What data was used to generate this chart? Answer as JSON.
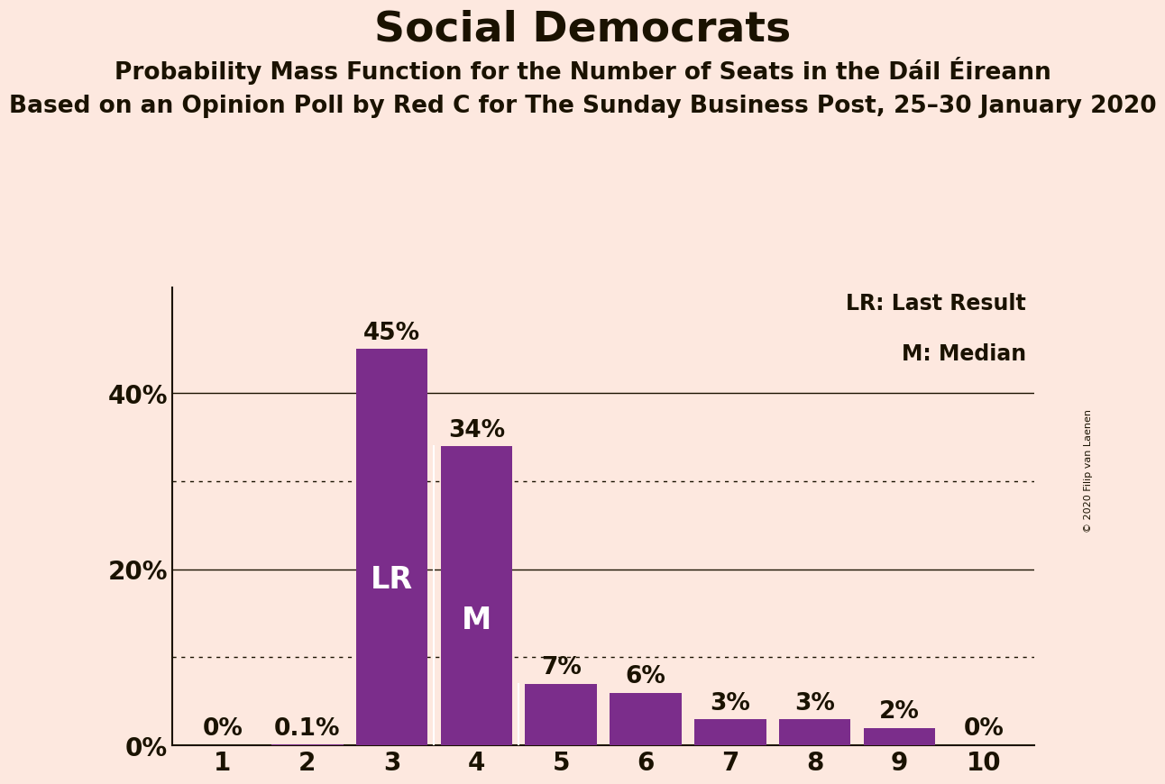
{
  "title": "Social Democrats",
  "subtitle1": "Probability Mass Function for the Number of Seats in the Dáil Éireann",
  "subtitle2": "Based on an Opinion Poll by Red C for The Sunday Business Post, 25–30 January 2020",
  "copyright": "© 2020 Filip van Laenen",
  "categories": [
    1,
    2,
    3,
    4,
    5,
    6,
    7,
    8,
    9,
    10
  ],
  "values": [
    0.0,
    0.1,
    45.0,
    34.0,
    7.0,
    6.0,
    3.0,
    3.0,
    2.0,
    0.0
  ],
  "bar_labels": [
    "0%",
    "0.1%",
    "45%",
    "34%",
    "7%",
    "6%",
    "3%",
    "3%",
    "2%",
    "0%"
  ],
  "bar_color": "#7B2D8B",
  "background_color": "#fde8df",
  "text_color": "#1a1200",
  "title_fontsize": 34,
  "subtitle1_fontsize": 19,
  "subtitle2_fontsize": 19,
  "ytick_labels": [
    "0%",
    "20%",
    "40%"
  ],
  "ytick_values": [
    0,
    20,
    40
  ],
  "solid_gridlines": [
    20,
    40
  ],
  "dotted_gridlines": [
    10,
    30
  ],
  "lr_bar": 3,
  "m_bar": 4,
  "legend_text": [
    "LR: Last Result",
    "M: Median"
  ],
  "ylabel_fontsize": 20,
  "bar_label_fontsize": 19,
  "xlabel_fontsize": 20,
  "lr_fontsize": 24,
  "m_fontsize": 24,
  "legend_fontsize": 17
}
